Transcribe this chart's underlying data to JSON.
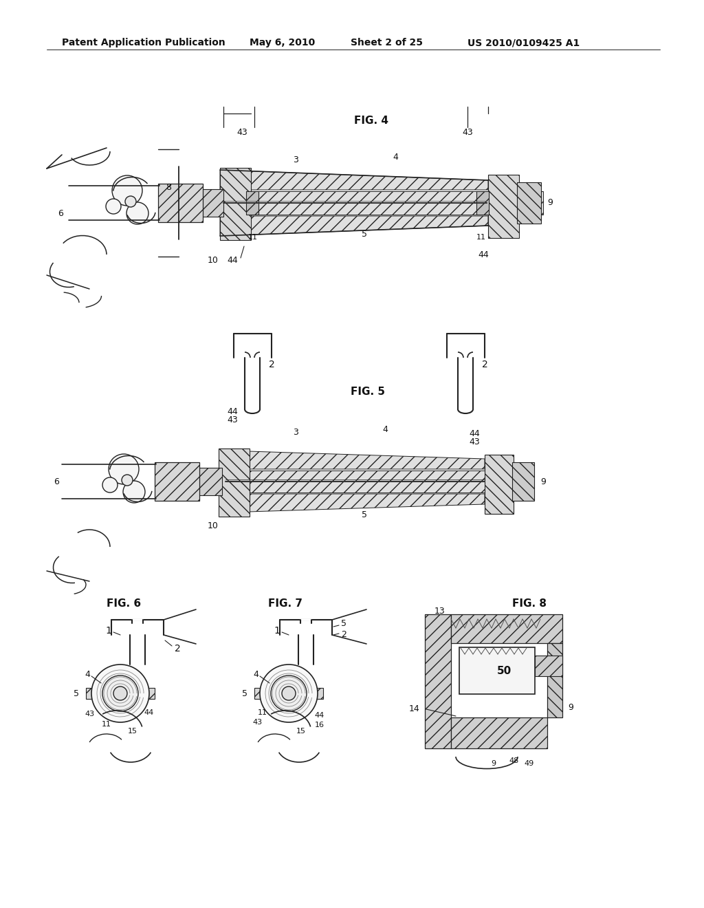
{
  "bg_color": "#ffffff",
  "header_text": "Patent Application Publication",
  "header_date": "May 6, 2010",
  "header_sheet": "Sheet 2 of 25",
  "header_patent": "US 2010/0109425 A1",
  "fig4_label": "FIG. 4",
  "fig5_label": "FIG. 5",
  "fig6_label": "FIG. 6",
  "fig7_label": "FIG. 7",
  "fig8_label": "FIG. 8",
  "lc": "#222222",
  "tc": "#111111",
  "hc": "#888888"
}
